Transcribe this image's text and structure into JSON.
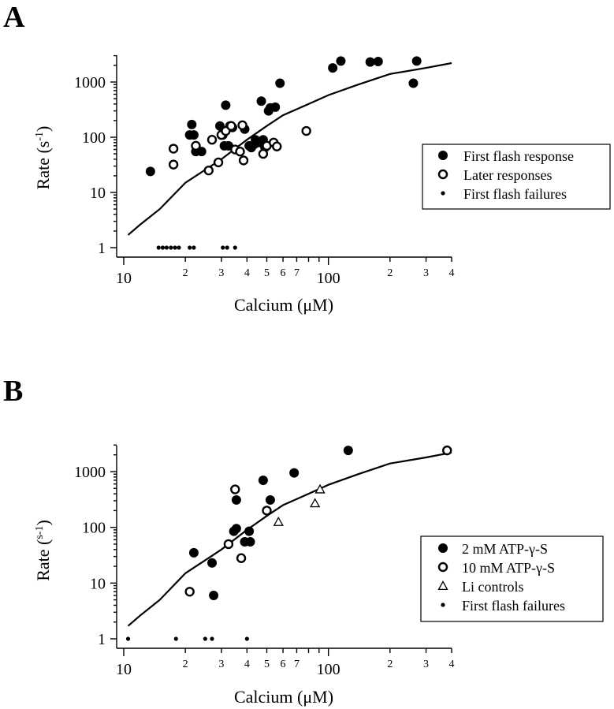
{
  "chart_data": [
    {
      "panel_label": "A",
      "type": "scatter",
      "xlabel_main": "Calcium (",
      "xlabel_unit": "μM",
      "xlabel_close": ")",
      "ylabel_main": "Rate (s",
      "ylabel_exp": "-1",
      "ylabel_close": ")",
      "x_scale": "log",
      "y_scale": "log",
      "xlim": [
        10,
        400
      ],
      "ylim": [
        0.75,
        3000
      ],
      "x_major_ticks": [
        {
          "value": 10,
          "label": "10"
        },
        {
          "value": 100,
          "label": "100"
        }
      ],
      "x_minor_ticks": [
        {
          "value": 20,
          "label": "2"
        },
        {
          "value": 30,
          "label": "3"
        },
        {
          "value": 40,
          "label": "4"
        },
        {
          "value": 50,
          "label": "5"
        },
        {
          "value": 60,
          "label": "6"
        },
        {
          "value": 70,
          "label": "7"
        },
        {
          "value": 80,
          "label": ""
        },
        {
          "value": 90,
          "label": ""
        },
        {
          "value": 200,
          "label": "2"
        },
        {
          "value": 300,
          "label": "3"
        },
        {
          "value": 400,
          "label": "4"
        }
      ],
      "y_ticks": [
        {
          "value": 1,
          "label": "1"
        },
        {
          "value": 10,
          "label": "10"
        },
        {
          "value": 100,
          "label": "100"
        },
        {
          "value": 1000,
          "label": "1000"
        }
      ],
      "legend_position": "right",
      "legend": [
        "First flash response",
        "Later responses",
        "First flash failures"
      ],
      "series": [
        {
          "name": "First flash response",
          "marker": "filled-circle",
          "points": [
            [
              13.5,
              24
            ],
            [
              21,
              110
            ],
            [
              21.5,
              170
            ],
            [
              22,
              110
            ],
            [
              22.5,
              55
            ],
            [
              24,
              55
            ],
            [
              29.5,
              160
            ],
            [
              30.5,
              110
            ],
            [
              31,
              70
            ],
            [
              31.5,
              380
            ],
            [
              32.5,
              70
            ],
            [
              33,
              160
            ],
            [
              34,
              150
            ],
            [
              39,
              140
            ],
            [
              41,
              70
            ],
            [
              42,
              65
            ],
            [
              43.5,
              75
            ],
            [
              44,
              90
            ],
            [
              46,
              80
            ],
            [
              47,
              450
            ],
            [
              48,
              90
            ],
            [
              49,
              65
            ],
            [
              51,
              300
            ],
            [
              52,
              340
            ],
            [
              55,
              350
            ],
            [
              58,
              950
            ],
            [
              105,
              1800
            ],
            [
              115,
              2400
            ],
            [
              160,
              2300
            ],
            [
              175,
              2350
            ],
            [
              260,
              950
            ],
            [
              270,
              2400
            ]
          ]
        },
        {
          "name": "Later responses",
          "marker": "open-circle",
          "points": [
            [
              17.5,
              32
            ],
            [
              17.5,
              62
            ],
            [
              22.5,
              70
            ],
            [
              26,
              25
            ],
            [
              27,
              90
            ],
            [
              29,
              35
            ],
            [
              30,
              110
            ],
            [
              31.5,
              130
            ],
            [
              33.5,
              160
            ],
            [
              35,
              60
            ],
            [
              37,
              55
            ],
            [
              38,
              165
            ],
            [
              38.5,
              38
            ],
            [
              48,
              50
            ],
            [
              50,
              70
            ],
            [
              54,
              80
            ],
            [
              56,
              68
            ],
            [
              78,
              130
            ]
          ]
        },
        {
          "name": "First flash failures",
          "marker": "small-dot",
          "points": [
            [
              14.8,
              1
            ],
            [
              15.5,
              1
            ],
            [
              16.2,
              1
            ],
            [
              17,
              1
            ],
            [
              17.8,
              1
            ],
            [
              18.6,
              1
            ],
            [
              21,
              1
            ],
            [
              22,
              1
            ],
            [
              30.5,
              1
            ],
            [
              32,
              1
            ],
            [
              35,
              1
            ]
          ]
        }
      ],
      "fit_curve": [
        [
          10.5,
          1.7
        ],
        [
          12,
          2.6
        ],
        [
          15,
          5
        ],
        [
          20,
          15
        ],
        [
          30,
          40
        ],
        [
          40,
          90
        ],
        [
          50,
          160
        ],
        [
          60,
          250
        ],
        [
          80,
          400
        ],
        [
          100,
          580
        ],
        [
          140,
          900
        ],
        [
          200,
          1400
        ],
        [
          300,
          1800
        ],
        [
          400,
          2200
        ]
      ]
    },
    {
      "panel_label": "B",
      "type": "scatter",
      "xlabel_main": "Calcium (",
      "xlabel_unit": "μM",
      "xlabel_close": ")",
      "ylabel_main": "Rate (",
      "ylabel_exp": "s-1",
      "ylabel_close": ")",
      "x_scale": "log",
      "y_scale": "log",
      "xlim": [
        10,
        400
      ],
      "ylim": [
        0.75,
        3000
      ],
      "x_major_ticks": [
        {
          "value": 10,
          "label": "10"
        },
        {
          "value": 100,
          "label": "100"
        }
      ],
      "x_minor_ticks": [
        {
          "value": 20,
          "label": "2"
        },
        {
          "value": 30,
          "label": "3"
        },
        {
          "value": 40,
          "label": "4"
        },
        {
          "value": 50,
          "label": "5"
        },
        {
          "value": 60,
          "label": "6"
        },
        {
          "value": 70,
          "label": "7"
        },
        {
          "value": 80,
          "label": ""
        },
        {
          "value": 90,
          "label": ""
        },
        {
          "value": 200,
          "label": "2"
        },
        {
          "value": 300,
          "label": "3"
        },
        {
          "value": 400,
          "label": "4"
        }
      ],
      "y_ticks": [
        {
          "value": 1,
          "label": "1"
        },
        {
          "value": 10,
          "label": "10"
        },
        {
          "value": 100,
          "label": "100"
        },
        {
          "value": 1000,
          "label": "1000"
        }
      ],
      "legend_position": "bottom-right",
      "legend": [
        "2 mM ATP-γ-S",
        "10 mM ATP-γ-S",
        "Li controls",
        "First flash failures"
      ],
      "series": [
        {
          "name": "2 mM ATP-γ-S",
          "marker": "filled-circle",
          "points": [
            [
              22,
              35
            ],
            [
              27,
              23
            ],
            [
              27.5,
              6
            ],
            [
              34.5,
              85
            ],
            [
              35.5,
              95
            ],
            [
              35.5,
              310
            ],
            [
              39,
              55
            ],
            [
              41,
              85
            ],
            [
              41.5,
              55
            ],
            [
              48,
              700
            ],
            [
              52,
              310
            ],
            [
              68,
              950
            ],
            [
              125,
              2400
            ]
          ]
        },
        {
          "name": "10 mM ATP-γ-S",
          "marker": "open-circle",
          "points": [
            [
              21,
              7
            ],
            [
              32.5,
              50
            ],
            [
              35,
              480
            ],
            [
              37.5,
              28
            ],
            [
              50,
              200
            ],
            [
              380,
              2400
            ]
          ]
        },
        {
          "name": "Li controls",
          "marker": "open-triangle",
          "points": [
            [
              57,
              125
            ],
            [
              86,
              270
            ],
            [
              91,
              480
            ]
          ]
        },
        {
          "name": "First flash failures",
          "marker": "small-dot",
          "points": [
            [
              10.5,
              1
            ],
            [
              18,
              1
            ],
            [
              25,
              1
            ],
            [
              27,
              1
            ],
            [
              40,
              1
            ]
          ]
        }
      ],
      "fit_curve": [
        [
          10.5,
          1.7
        ],
        [
          12,
          2.6
        ],
        [
          15,
          5
        ],
        [
          20,
          15
        ],
        [
          30,
          40
        ],
        [
          40,
          90
        ],
        [
          50,
          160
        ],
        [
          60,
          250
        ],
        [
          80,
          400
        ],
        [
          100,
          580
        ],
        [
          140,
          900
        ],
        [
          200,
          1400
        ],
        [
          300,
          1800
        ],
        [
          400,
          2200
        ]
      ]
    }
  ]
}
